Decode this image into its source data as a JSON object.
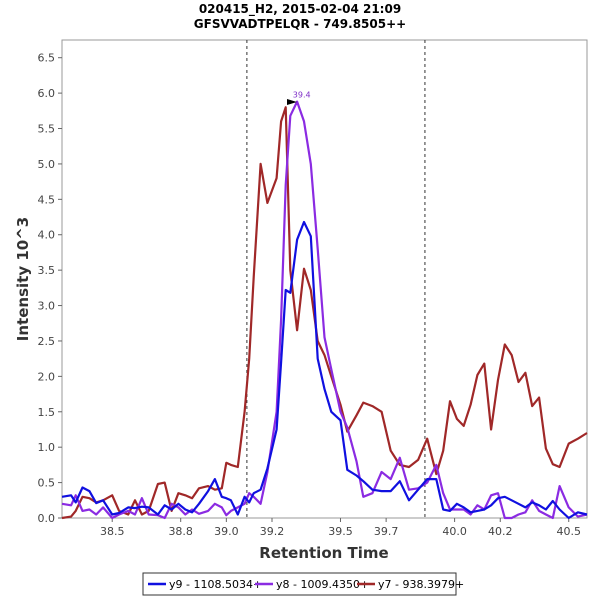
{
  "chart_data": {
    "type": "line",
    "title": "020415_H2, 2015-02-04 21:09",
    "subtitle": "GFSVVADTPELQR - 749.8505++",
    "xlabel": "Retention Time",
    "ylabel": "Intensity 10^3",
    "xlim": [
      38.28,
      40.58
    ],
    "ylim": [
      0,
      6.75
    ],
    "xticks": [
      38.5,
      38.8,
      39.0,
      39.2,
      39.5,
      39.7,
      40.0,
      40.2,
      40.5
    ],
    "yticks": [
      0.0,
      0.5,
      1.0,
      1.5,
      2.0,
      2.5,
      3.0,
      3.5,
      4.0,
      4.5,
      5.0,
      5.5,
      6.0,
      6.5
    ],
    "integration_bounds": [
      39.09,
      39.87
    ],
    "peak_annotation": {
      "x": 39.33,
      "y": 5.88,
      "label": "39.4",
      "color": "#7f2fc8"
    },
    "legend": [
      "y9 - 1108.5034+",
      "y8 - 1009.4350+",
      "y7 - 938.3979+"
    ],
    "series": [
      {
        "name": "y9 - 1108.5034+",
        "color": "#1010e0",
        "x": [
          38.28,
          38.32,
          38.34,
          38.37,
          38.4,
          38.43,
          38.46,
          38.5,
          38.53,
          38.57,
          38.6,
          38.63,
          38.66,
          38.7,
          38.73,
          38.76,
          38.79,
          38.82,
          38.85,
          38.88,
          38.92,
          38.95,
          38.98,
          39.0,
          39.02,
          39.05,
          39.08,
          39.1,
          39.12,
          39.15,
          39.18,
          39.22,
          39.24,
          39.26,
          39.28,
          39.31,
          39.34,
          39.37,
          39.4,
          39.43,
          39.46,
          39.5,
          39.53,
          39.57,
          39.6,
          39.64,
          39.68,
          39.72,
          39.76,
          39.8,
          39.84,
          39.88,
          39.92,
          39.95,
          39.98,
          40.01,
          40.04,
          40.07,
          40.1,
          40.13,
          40.16,
          40.19,
          40.22,
          40.25,
          40.28,
          40.31,
          40.34,
          40.37,
          40.4,
          40.43,
          40.46,
          40.5,
          40.54,
          40.58
        ],
        "values": [
          0.3,
          0.32,
          0.22,
          0.43,
          0.38,
          0.21,
          0.25,
          0.05,
          0.07,
          0.15,
          0.14,
          0.16,
          0.15,
          0.05,
          0.18,
          0.12,
          0.2,
          0.12,
          0.08,
          0.2,
          0.38,
          0.55,
          0.3,
          0.28,
          0.25,
          0.05,
          0.3,
          0.22,
          0.35,
          0.4,
          0.7,
          1.25,
          2.2,
          3.22,
          3.18,
          3.93,
          4.18,
          3.98,
          2.25,
          1.82,
          1.5,
          1.38,
          0.68,
          0.6,
          0.52,
          0.4,
          0.38,
          0.38,
          0.52,
          0.25,
          0.4,
          0.55,
          0.55,
          0.12,
          0.1,
          0.2,
          0.15,
          0.08,
          0.1,
          0.12,
          0.18,
          0.28,
          0.3,
          0.25,
          0.2,
          0.15,
          0.22,
          0.18,
          0.12,
          0.24,
          0.12,
          0.0,
          0.08,
          0.05
        ]
      },
      {
        "name": "y8 - 1009.4350+",
        "color": "#8b2be2",
        "x": [
          38.28,
          38.32,
          38.34,
          38.37,
          38.4,
          38.43,
          38.46,
          38.5,
          38.53,
          38.57,
          38.6,
          38.63,
          38.66,
          38.7,
          38.73,
          38.76,
          38.79,
          38.82,
          38.85,
          38.88,
          38.92,
          38.95,
          38.98,
          39.0,
          39.02,
          39.05,
          39.08,
          39.1,
          39.12,
          39.15,
          39.18,
          39.22,
          39.24,
          39.26,
          39.28,
          39.31,
          39.34,
          39.37,
          39.4,
          39.43,
          39.46,
          39.5,
          39.53,
          39.57,
          39.6,
          39.64,
          39.68,
          39.72,
          39.76,
          39.8,
          39.84,
          39.88,
          39.92,
          39.95,
          39.98,
          40.01,
          40.04,
          40.07,
          40.1,
          40.13,
          40.16,
          40.19,
          40.22,
          40.25,
          40.28,
          40.31,
          40.34,
          40.37,
          40.4,
          40.43,
          40.46,
          40.5,
          40.54,
          40.58
        ],
        "values": [
          0.2,
          0.18,
          0.32,
          0.1,
          0.12,
          0.05,
          0.15,
          0.0,
          0.05,
          0.1,
          0.05,
          0.28,
          0.05,
          0.04,
          0.0,
          0.2,
          0.15,
          0.05,
          0.12,
          0.06,
          0.1,
          0.2,
          0.15,
          0.04,
          0.1,
          0.15,
          0.2,
          0.35,
          0.3,
          0.2,
          0.65,
          1.5,
          2.8,
          4.7,
          5.68,
          5.88,
          5.6,
          5.0,
          3.8,
          2.55,
          2.1,
          1.5,
          1.28,
          0.8,
          0.3,
          0.35,
          0.65,
          0.55,
          0.85,
          0.4,
          0.42,
          0.5,
          0.75,
          0.35,
          0.12,
          0.12,
          0.12,
          0.05,
          0.18,
          0.12,
          0.32,
          0.35,
          0.0,
          0.0,
          0.05,
          0.08,
          0.25,
          0.1,
          0.05,
          0.0,
          0.45,
          0.15,
          0.02,
          0.05
        ]
      },
      {
        "name": "y7 - 938.3979+",
        "color": "#a02828",
        "x": [
          38.28,
          38.32,
          38.34,
          38.37,
          38.4,
          38.43,
          38.46,
          38.5,
          38.53,
          38.57,
          38.6,
          38.63,
          38.66,
          38.7,
          38.73,
          38.76,
          38.79,
          38.82,
          38.85,
          38.88,
          38.92,
          38.95,
          38.98,
          39.0,
          39.02,
          39.05,
          39.08,
          39.1,
          39.12,
          39.15,
          39.18,
          39.22,
          39.24,
          39.26,
          39.28,
          39.31,
          39.34,
          39.37,
          39.4,
          39.43,
          39.46,
          39.5,
          39.53,
          39.57,
          39.6,
          39.64,
          39.68,
          39.72,
          39.76,
          39.8,
          39.84,
          39.88,
          39.92,
          39.95,
          39.98,
          40.01,
          40.04,
          40.07,
          40.1,
          40.13,
          40.16,
          40.19,
          40.22,
          40.25,
          40.28,
          40.31,
          40.34,
          40.37,
          40.4,
          40.43,
          40.46,
          40.5,
          40.54,
          40.58
        ],
        "values": [
          0.0,
          0.02,
          0.1,
          0.3,
          0.28,
          0.22,
          0.25,
          0.32,
          0.1,
          0.05,
          0.25,
          0.05,
          0.1,
          0.48,
          0.5,
          0.1,
          0.35,
          0.32,
          0.28,
          0.42,
          0.45,
          0.4,
          0.42,
          0.78,
          0.75,
          0.72,
          1.5,
          2.25,
          3.4,
          5.0,
          4.45,
          4.8,
          5.6,
          5.8,
          3.5,
          2.65,
          3.52,
          3.22,
          2.5,
          2.3,
          2.0,
          1.6,
          1.22,
          1.45,
          1.63,
          1.58,
          1.5,
          0.95,
          0.75,
          0.72,
          0.82,
          1.12,
          0.62,
          0.95,
          1.65,
          1.4,
          1.3,
          1.6,
          2.02,
          2.18,
          1.25,
          1.95,
          2.45,
          2.3,
          1.92,
          2.05,
          1.58,
          1.7,
          0.98,
          0.76,
          0.72,
          1.05,
          1.12,
          1.2
        ]
      }
    ]
  }
}
